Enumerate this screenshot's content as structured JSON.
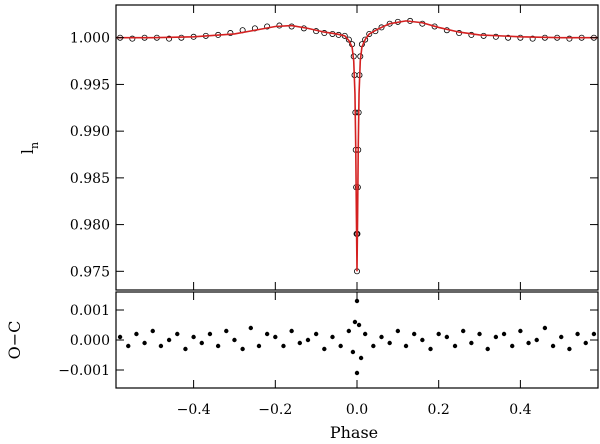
{
  "chart_data": [
    {
      "type": "scatter",
      "panel": "light-curve",
      "xlabel": "",
      "ylabel": "l",
      "ylabel_subscript": "n",
      "xlim": [
        -0.59,
        0.59
      ],
      "ylim": [
        0.973,
        1.0035
      ],
      "yticks": [
        0.975,
        0.98,
        0.985,
        0.99,
        0.995,
        1.0
      ],
      "ytick_labels": [
        "0.975",
        "0.980",
        "0.985",
        "0.990",
        "0.995",
        "1.000"
      ],
      "xticks": [
        -0.4,
        -0.2,
        0.0,
        0.2,
        0.4
      ],
      "xtick_labels_shown": false,
      "grid": false,
      "observed": {
        "marker": "open-circle",
        "color": "#000000",
        "x": [
          -0.58,
          -0.55,
          -0.52,
          -0.49,
          -0.46,
          -0.43,
          -0.4,
          -0.37,
          -0.34,
          -0.31,
          -0.28,
          -0.25,
          -0.22,
          -0.19,
          -0.16,
          -0.13,
          -0.1,
          -0.08,
          -0.06,
          -0.045,
          -0.03,
          -0.02,
          -0.012,
          -0.008,
          -0.006,
          -0.004,
          -0.003,
          -0.002,
          -0.001,
          0.0,
          0.001,
          0.002,
          0.003,
          0.004,
          0.006,
          0.008,
          0.012,
          0.02,
          0.03,
          0.045,
          0.06,
          0.08,
          0.1,
          0.13,
          0.16,
          0.19,
          0.22,
          0.25,
          0.28,
          0.31,
          0.34,
          0.37,
          0.4,
          0.43,
          0.46,
          0.49,
          0.52,
          0.55,
          0.58
        ],
        "y": [
          1.0,
          0.9999,
          1.0,
          1.0,
          0.9999,
          1.0,
          1.0001,
          1.0002,
          1.0003,
          1.0005,
          1.0008,
          1.001,
          1.0012,
          1.0013,
          1.0012,
          1.001,
          1.0007,
          1.0005,
          1.0004,
          1.0003,
          1.0002,
          0.9998,
          0.9993,
          0.998,
          0.996,
          0.992,
          0.988,
          0.984,
          0.979,
          0.975,
          0.979,
          0.984,
          0.988,
          0.992,
          0.996,
          0.998,
          0.9993,
          0.9998,
          1.0004,
          1.0007,
          1.0011,
          1.0015,
          1.0017,
          1.0018,
          1.0015,
          1.0012,
          1.0008,
          1.0005,
          1.0003,
          1.0002,
          1.0001,
          1.0,
          1.0,
          0.9999,
          1.0,
          1.0,
          0.9999,
          1.0,
          1.0
        ]
      },
      "model": {
        "type": "line",
        "color": "#d42020",
        "x": [
          -0.59,
          -0.5,
          -0.4,
          -0.3,
          -0.25,
          -0.2,
          -0.16,
          -0.12,
          -0.08,
          -0.05,
          -0.03,
          -0.02,
          -0.012,
          -0.008,
          -0.005,
          -0.003,
          -0.0015,
          0.0,
          0.0015,
          0.003,
          0.005,
          0.008,
          0.012,
          0.02,
          0.03,
          0.05,
          0.08,
          0.12,
          0.16,
          0.2,
          0.25,
          0.3,
          0.4,
          0.5,
          0.59
        ],
        "y": [
          1.0,
          1.0,
          1.0001,
          1.0004,
          1.0008,
          1.0012,
          1.0013,
          1.001,
          1.0006,
          1.0004,
          1.0002,
          0.9997,
          0.999,
          0.9975,
          0.994,
          0.988,
          0.981,
          0.975,
          0.981,
          0.988,
          0.994,
          0.9975,
          0.999,
          0.9998,
          1.0004,
          1.0009,
          1.0015,
          1.0018,
          1.0016,
          1.0011,
          1.0006,
          1.0003,
          1.0001,
          1.0,
          1.0
        ]
      }
    },
    {
      "type": "scatter",
      "panel": "residuals",
      "xlabel": "Phase",
      "ylabel": "O−C",
      "xlim": [
        -0.59,
        0.59
      ],
      "ylim": [
        -0.0016,
        0.0016
      ],
      "yticks": [
        -0.001,
        0.0,
        0.001
      ],
      "ytick_labels": [
        "−0.001",
        "0.000",
        "0.001"
      ],
      "xticks": [
        -0.4,
        -0.2,
        0.0,
        0.2,
        0.4
      ],
      "xtick_labels": [
        "−0.4",
        "−0.2",
        "0.0",
        "0.2",
        "0.4"
      ],
      "grid": false,
      "residuals": {
        "marker": "filled-circle",
        "color": "#000000",
        "x": [
          -0.58,
          -0.56,
          -0.54,
          -0.52,
          -0.5,
          -0.48,
          -0.46,
          -0.44,
          -0.42,
          -0.4,
          -0.38,
          -0.36,
          -0.34,
          -0.32,
          -0.3,
          -0.28,
          -0.26,
          -0.24,
          -0.22,
          -0.2,
          -0.18,
          -0.16,
          -0.14,
          -0.12,
          -0.1,
          -0.08,
          -0.06,
          -0.04,
          -0.02,
          -0.01,
          -0.005,
          0.0,
          0.0,
          0.005,
          0.01,
          0.02,
          0.04,
          0.06,
          0.08,
          0.1,
          0.12,
          0.14,
          0.16,
          0.18,
          0.2,
          0.22,
          0.24,
          0.26,
          0.28,
          0.3,
          0.32,
          0.34,
          0.36,
          0.38,
          0.4,
          0.42,
          0.44,
          0.46,
          0.48,
          0.5,
          0.52,
          0.54,
          0.56,
          0.58
        ],
        "y": [
          0.0001,
          -0.0002,
          0.0002,
          -0.0001,
          0.0003,
          -0.0002,
          0.0,
          0.0002,
          -0.0003,
          0.0001,
          -0.0001,
          0.0002,
          -0.0002,
          0.0003,
          0.0,
          -0.0003,
          0.0004,
          -0.0002,
          0.0002,
          0.0001,
          -0.0002,
          0.0003,
          -0.0001,
          0.0,
          0.0002,
          -0.0003,
          0.0001,
          -0.0002,
          0.0003,
          -0.0004,
          0.0006,
          0.0013,
          -0.0011,
          0.0005,
          -0.0006,
          0.0002,
          -0.0002,
          0.0001,
          -0.0001,
          0.0003,
          -0.0002,
          0.0002,
          0.0,
          -0.0003,
          0.0002,
          0.0001,
          -0.0002,
          0.0003,
          -0.0001,
          0.0002,
          -0.0003,
          0.0001,
          0.0002,
          -0.0002,
          0.0003,
          -0.0001,
          0.0,
          0.0004,
          -0.0002,
          0.0001,
          -0.0003,
          0.0002,
          -0.0001,
          0.0002
        ]
      }
    }
  ]
}
